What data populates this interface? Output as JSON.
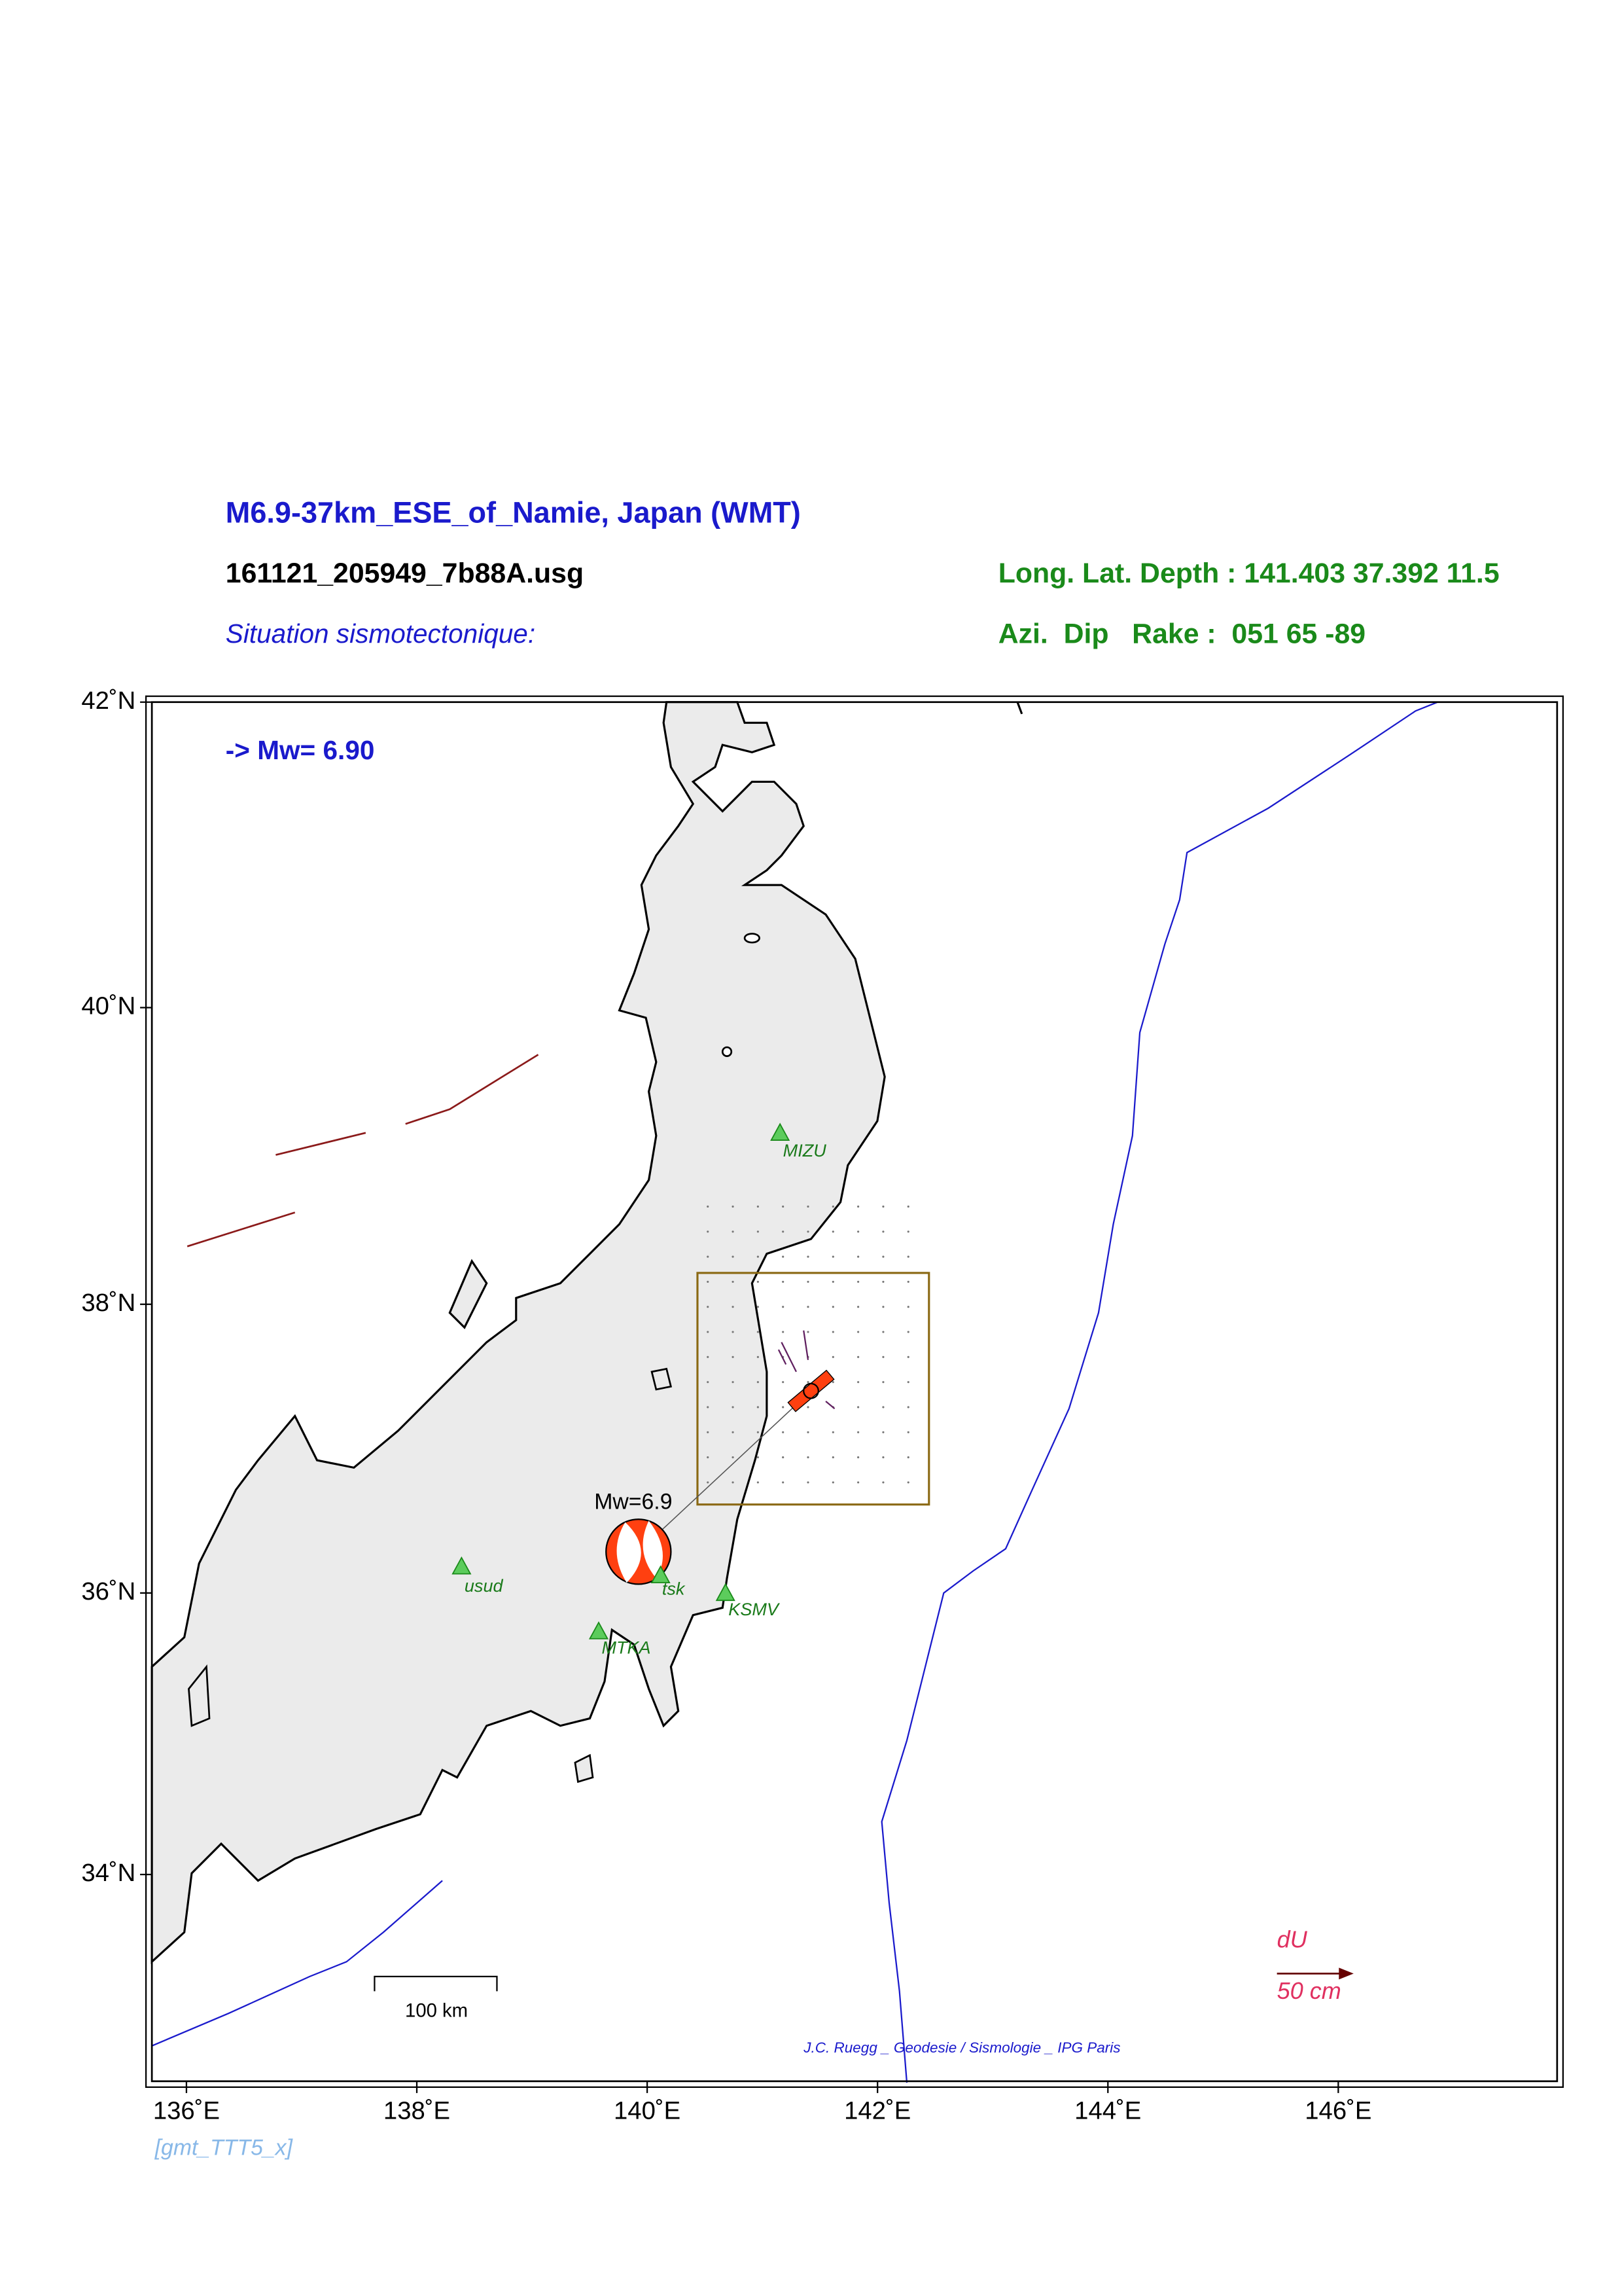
{
  "header": {
    "title": "M6.9-37km_ESE_of_Namie, Japan (WMT)",
    "file": "161121_205949_7b88A.usg",
    "location": "Long. Lat. Depth : 141.403 37.392 11.5",
    "mechanism": "Azi.  Dip   Rake :  051 65 -89",
    "subtitle": "Situation sismotectonique:"
  },
  "map": {
    "magnitude_label": "-> Mw= 6.90",
    "beachball_label": "Mw=6.9",
    "lonlim": [
      135.7,
      147.9
    ],
    "latlim": [
      32.5,
      42
    ],
    "xticks": [
      {
        "value": 136,
        "label": "136˚E"
      },
      {
        "value": 138,
        "label": "138˚E"
      },
      {
        "value": 140,
        "label": "140˚E"
      },
      {
        "value": 142,
        "label": "142˚E"
      },
      {
        "value": 144,
        "label": "144˚E"
      },
      {
        "value": 146,
        "label": "146˚E"
      }
    ],
    "yticks": [
      {
        "value": 34,
        "label": "34˚N"
      },
      {
        "value": 36,
        "label": "36˚N"
      },
      {
        "value": 38,
        "label": "38˚N"
      },
      {
        "value": 40,
        "label": "40˚N"
      },
      {
        "value": 42,
        "label": "42˚N"
      }
    ],
    "stations": [
      "MIZU",
      "usud",
      "tsk",
      "KSMV",
      "MTKA"
    ],
    "scale_bar": "100 km",
    "legend": {
      "title": "dU",
      "length": "50 cm"
    },
    "credit": "J.C. Ruegg _ Geodesie / Sismologie _ IPG Paris"
  },
  "footer": "[gmt_TTT5_x]"
}
